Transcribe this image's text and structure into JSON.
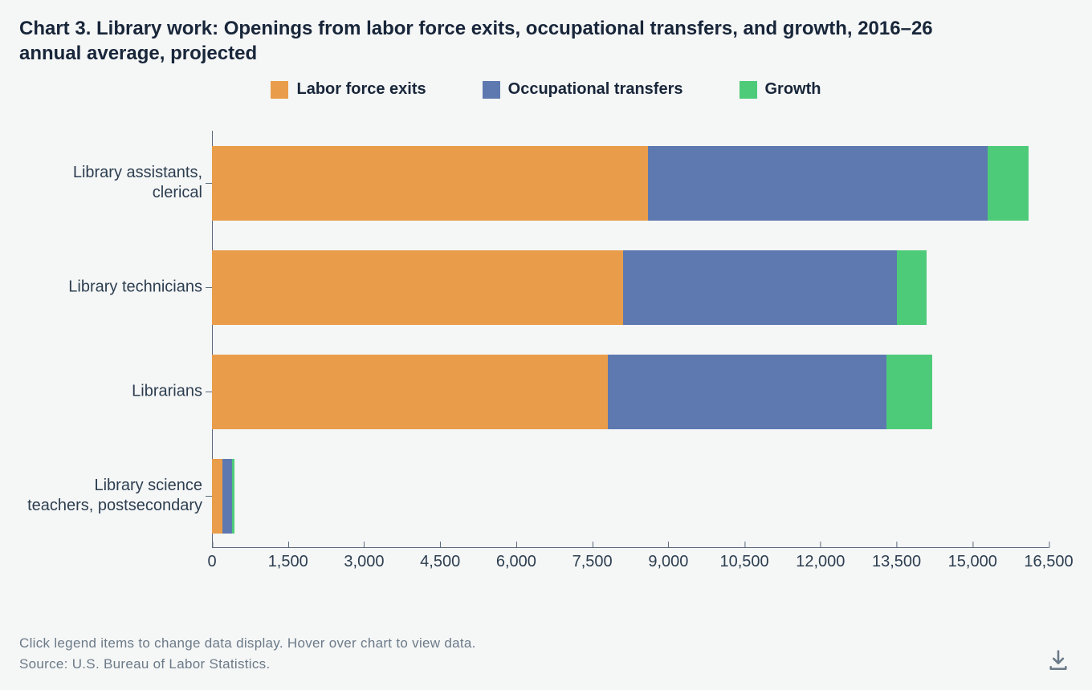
{
  "title": "Chart 3. Library work: Openings from labor force exits, occupational transfers, and growth, 2016–26 annual average, projected",
  "legend": {
    "items": [
      {
        "name": "exits",
        "label": "Labor force exits",
        "color": "#e99d4a"
      },
      {
        "name": "transfers",
        "label": "Occupational transfers",
        "color": "#5d79b0"
      },
      {
        "name": "growth",
        "label": "Growth",
        "color": "#4ecb79"
      }
    ]
  },
  "chart": {
    "type": "stacked-bar-horizontal",
    "background_color": "#f5f6f6",
    "axis_color": "#5a6a7a",
    "label_color": "#2c3e50",
    "title_color": "#18263a",
    "title_fontsize": 24,
    "label_fontsize": 20,
    "xlim": [
      0,
      16500
    ],
    "x_ticks": [
      0,
      1500,
      3000,
      4500,
      6000,
      7500,
      9000,
      10500,
      12000,
      13500,
      15000,
      16500
    ],
    "x_tick_labels": [
      "0",
      "1,500",
      "3,000",
      "4,500",
      "6,000",
      "7,500",
      "9,000",
      "10,500",
      "12,000",
      "13,500",
      "15,000",
      "16,500"
    ],
    "bar_height_ratio": 0.72,
    "row_step_ratio": 0.25,
    "categories": [
      {
        "key": "assistants",
        "label": "Library assistants, clerical",
        "values": {
          "exits": 8600,
          "transfers": 6700,
          "growth": 800
        }
      },
      {
        "key": "technicians",
        "label": "Library technicians",
        "values": {
          "exits": 8100,
          "transfers": 5400,
          "growth": 600
        }
      },
      {
        "key": "librarians",
        "label": "Librarians",
        "values": {
          "exits": 7800,
          "transfers": 5500,
          "growth": 900
        }
      },
      {
        "key": "teachers",
        "label": "Library science teachers, postsecondary",
        "values": {
          "exits": 200,
          "transfers": 200,
          "growth": 50
        }
      }
    ]
  },
  "footer": {
    "hint": "Click legend items to change data display. Hover over chart to view data.",
    "source": "Source: U.S. Bureau of Labor Statistics."
  },
  "icons": {
    "download": "download-icon"
  }
}
